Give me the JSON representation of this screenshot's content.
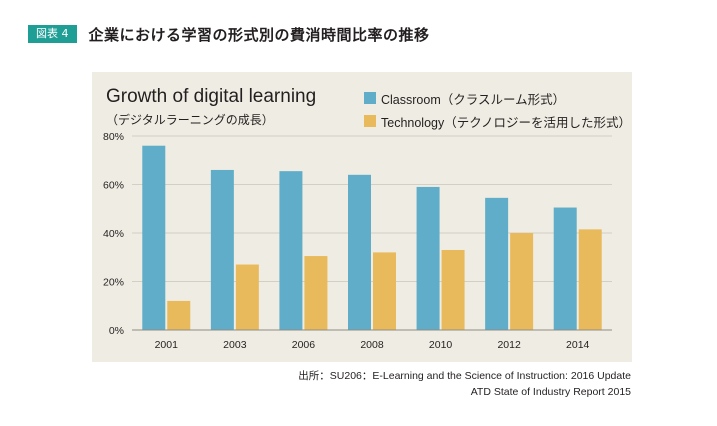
{
  "figure": {
    "badge": "図表 4",
    "title": "企業における学習の形式別の費消時間比率の推移"
  },
  "chart_data": {
    "type": "bar",
    "title": "Growth of digital learning",
    "subtitle": "（デジタルラーニングの成長）",
    "categories": [
      "2001",
      "2003",
      "2006",
      "2008",
      "2010",
      "2012",
      "2014"
    ],
    "series": [
      {
        "name": "Classroom（クラスルーム形式）",
        "color": "#5fadc9",
        "values": [
          76,
          66,
          65.5,
          64,
          59,
          54.5,
          50.5
        ]
      },
      {
        "name": "Technology（テクノロジーを活用した形式）",
        "color": "#e8ba5c",
        "values": [
          12,
          27,
          30.5,
          32,
          33,
          40,
          41.5
        ]
      }
    ],
    "yticks": [
      "0%",
      "20%",
      "40%",
      "60%",
      "80%"
    ],
    "ytick_values": [
      0,
      20,
      40,
      60,
      80
    ],
    "ylim": [
      0,
      80
    ],
    "grid": true,
    "legend_position": "top-right"
  },
  "source": {
    "line1": "出所：SU206：E-Learning and the Science of Instruction: 2016 Update",
    "line2": "ATD State of Industry Report 2015"
  }
}
